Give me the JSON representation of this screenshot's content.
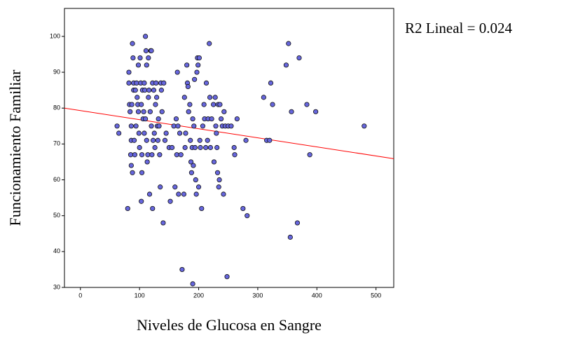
{
  "chart_data": {
    "type": "scatter",
    "x_label": "Niveles de Glucosa en Sangre",
    "y_label": "Funcionamiento Familiar",
    "annotation": "R2 Lineal = 0.024",
    "xlim": [
      -27,
      530
    ],
    "ylim": [
      30,
      107.8
    ],
    "xticks": [
      0,
      100,
      200,
      300,
      400,
      500
    ],
    "yticks": [
      30,
      40,
      50,
      60,
      70,
      80,
      90,
      100
    ],
    "color": "#6666dd",
    "fit_line": {
      "x": [
        -27,
        530
      ],
      "y": [
        80,
        65.9
      ],
      "color": "#ff0000"
    },
    "x": [
      62,
      65,
      80,
      82,
      82,
      83,
      84,
      86,
      86,
      85,
      86,
      88,
      87,
      88,
      89,
      90,
      90,
      91,
      92,
      93,
      94,
      95,
      96,
      97,
      98,
      98,
      99,
      100,
      101,
      102,
      103,
      103,
      104,
      104,
      105,
      106,
      107,
      108,
      108,
      109,
      110,
      110,
      111,
      112,
      112,
      113,
      114,
      115,
      115,
      116,
      117,
      118,
      119,
      120,
      120,
      121,
      122,
      122,
      123,
      124,
      125,
      126,
      127,
      128,
      129,
      130,
      131,
      132,
      133,
      134,
      135,
      136,
      137,
      138,
      140,
      141,
      143,
      145,
      150,
      152,
      155,
      158,
      160,
      162,
      163,
      164,
      165,
      166,
      168,
      170,
      172,
      175,
      176,
      177,
      178,
      180,
      181,
      182,
      183,
      185,
      186,
      187,
      188,
      189,
      190,
      190,
      191,
      192,
      193,
      194,
      195,
      196,
      197,
      198,
      199,
      200,
      201,
      202,
      203,
      205,
      207,
      209,
      210,
      212,
      213,
      215,
      216,
      218,
      219,
      220,
      222,
      225,
      226,
      228,
      229,
      230,
      231,
      232,
      233,
      234,
      235,
      236,
      238,
      240,
      242,
      243,
      245,
      248,
      250,
      255,
      260,
      261,
      265,
      275,
      280,
      282,
      310,
      315,
      320,
      322,
      325,
      348,
      352,
      355,
      357,
      367,
      370,
      383,
      388,
      398,
      480
    ],
    "y": [
      75,
      73,
      52,
      90,
      87,
      81,
      79,
      75,
      71,
      67,
      64,
      62,
      81,
      98,
      94,
      87,
      85,
      71,
      67,
      85,
      75,
      87,
      83,
      81,
      92,
      79,
      73,
      69,
      94,
      87,
      81,
      54,
      67,
      62,
      85,
      77,
      79,
      73,
      87,
      85,
      100,
      77,
      96,
      92,
      71,
      65,
      67,
      83,
      94,
      85,
      56,
      79,
      96,
      96,
      75,
      67,
      87,
      52,
      71,
      85,
      73,
      69,
      81,
      87,
      83,
      75,
      71,
      77,
      75,
      67,
      58,
      87,
      85,
      79,
      48,
      87,
      71,
      73,
      69,
      54,
      69,
      75,
      58,
      77,
      67,
      90,
      75,
      56,
      73,
      67,
      35,
      56,
      83,
      69,
      73,
      92,
      87,
      86,
      79,
      81,
      71,
      65,
      62,
      69,
      31,
      77,
      64,
      75,
      88,
      69,
      60,
      56,
      90,
      94,
      92,
      58,
      94,
      71,
      69,
      52,
      75,
      81,
      77,
      69,
      87,
      71,
      77,
      98,
      83,
      69,
      77,
      81,
      65,
      83,
      75,
      73,
      69,
      62,
      81,
      58,
      60,
      81,
      77,
      75,
      56,
      79,
      75,
      33,
      75,
      75,
      69,
      67,
      77,
      52,
      71,
      50,
      83,
      71,
      71,
      87,
      81,
      92,
      98,
      44,
      79,
      48,
      94,
      81,
      67,
      79,
      75
    ]
  }
}
